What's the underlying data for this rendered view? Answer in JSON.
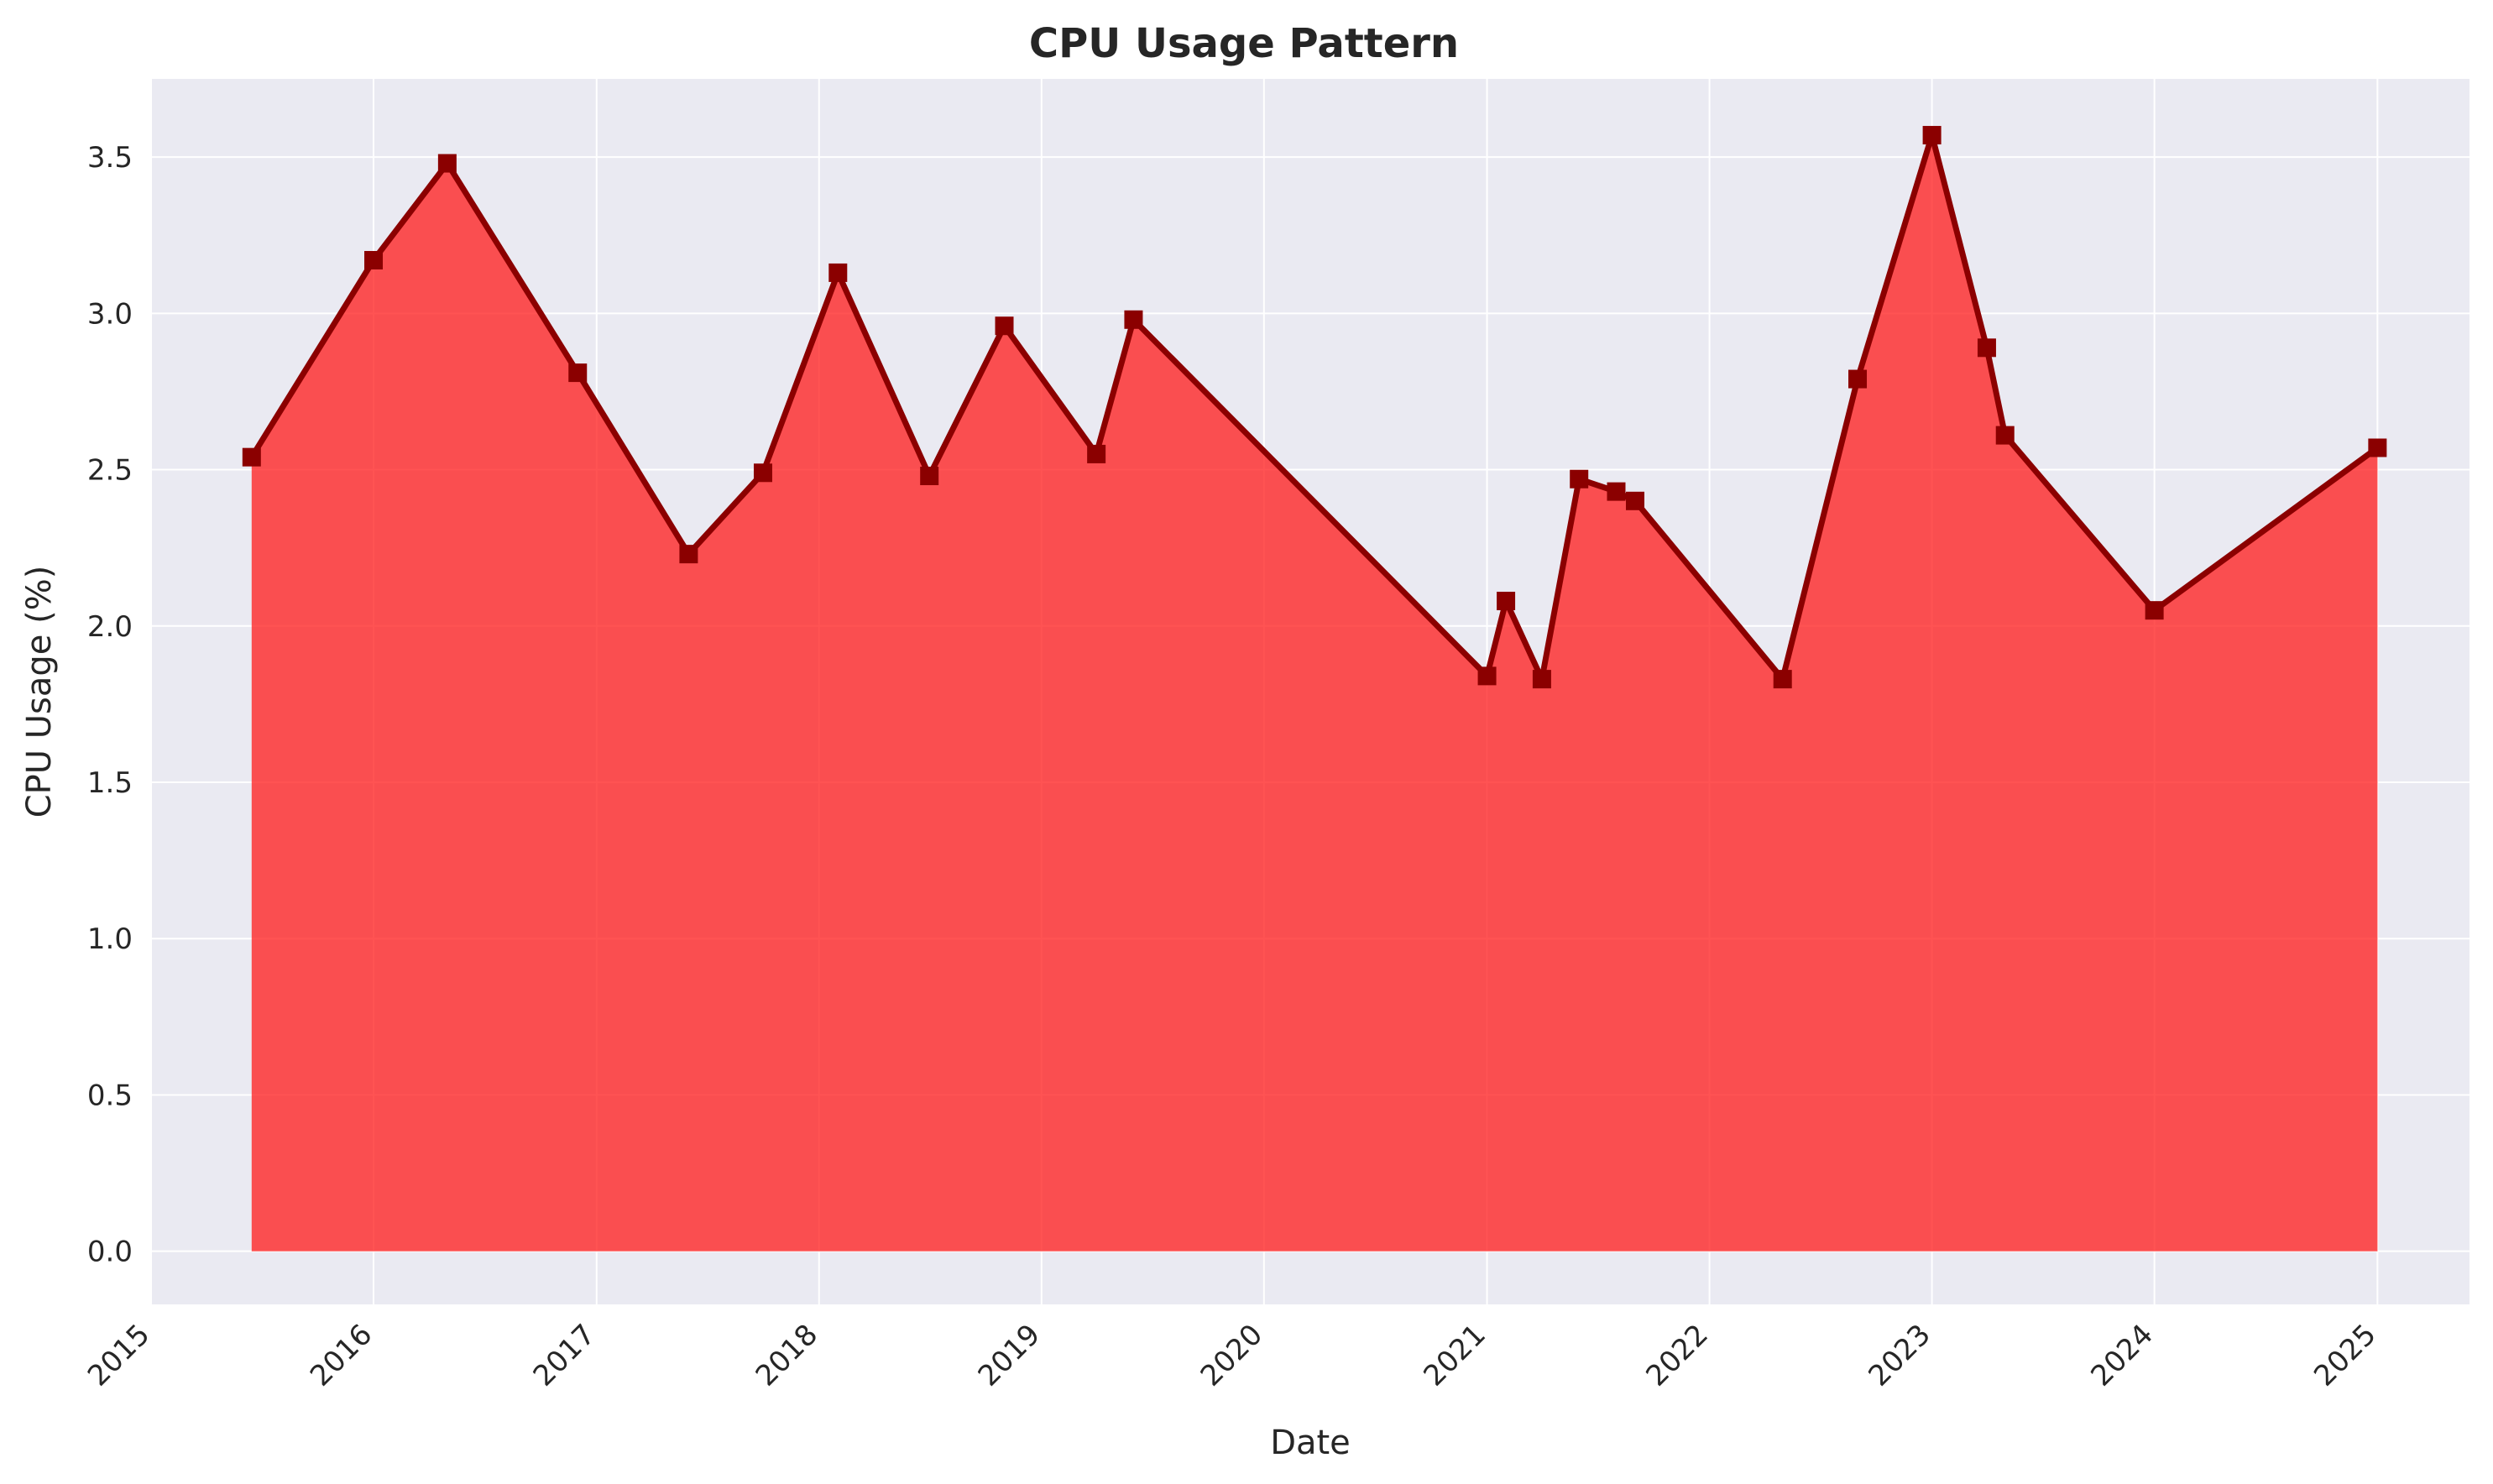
{
  "chart_data": {
    "type": "area",
    "title": "CPU Usage Pattern",
    "xlabel": "Date",
    "ylabel": "CPU Usage (%)",
    "x_ticks": [
      "2015",
      "2016",
      "2017",
      "2018",
      "2019",
      "2020",
      "2021",
      "2022",
      "2023",
      "2024",
      "2025"
    ],
    "y_ticks": [
      "0.0",
      "0.5",
      "1.0",
      "1.5",
      "2.0",
      "2.5",
      "3.0",
      "3.5"
    ],
    "xlim": [
      "2015-01-01",
      "2025-06-01"
    ],
    "ylim": [
      -0.17,
      3.75
    ],
    "grid": true,
    "series": [
      {
        "x": [
          "2015-06-15",
          "2016-01-01",
          "2016-05-01",
          "2016-12-01",
          "2017-06-01",
          "2017-10-01",
          "2018-02-01",
          "2018-07-01",
          "2018-11-01",
          "2019-04-01",
          "2019-06-01",
          "2021-01-01",
          "2021-02-01",
          "2021-04-01",
          "2021-06-01",
          "2021-08-01",
          "2021-09-01",
          "2022-05-01",
          "2022-09-01",
          "2023-01-01",
          "2023-04-01",
          "2023-05-01",
          "2024-01-01",
          "2025-01-01"
        ],
        "y": [
          2.54,
          3.17,
          3.48,
          2.81,
          2.23,
          2.49,
          3.13,
          2.48,
          2.96,
          2.55,
          2.98,
          1.84,
          2.08,
          1.83,
          2.47,
          2.43,
          2.4,
          1.83,
          2.79,
          3.57,
          2.89,
          2.61,
          2.05,
          2.57
        ]
      }
    ],
    "colors": {
      "fill": "#ff1a1a",
      "line": "#8b0000",
      "marker": "#8b0000",
      "plot_bg": "#eaeaf2",
      "grid": "#ffffff"
    }
  }
}
